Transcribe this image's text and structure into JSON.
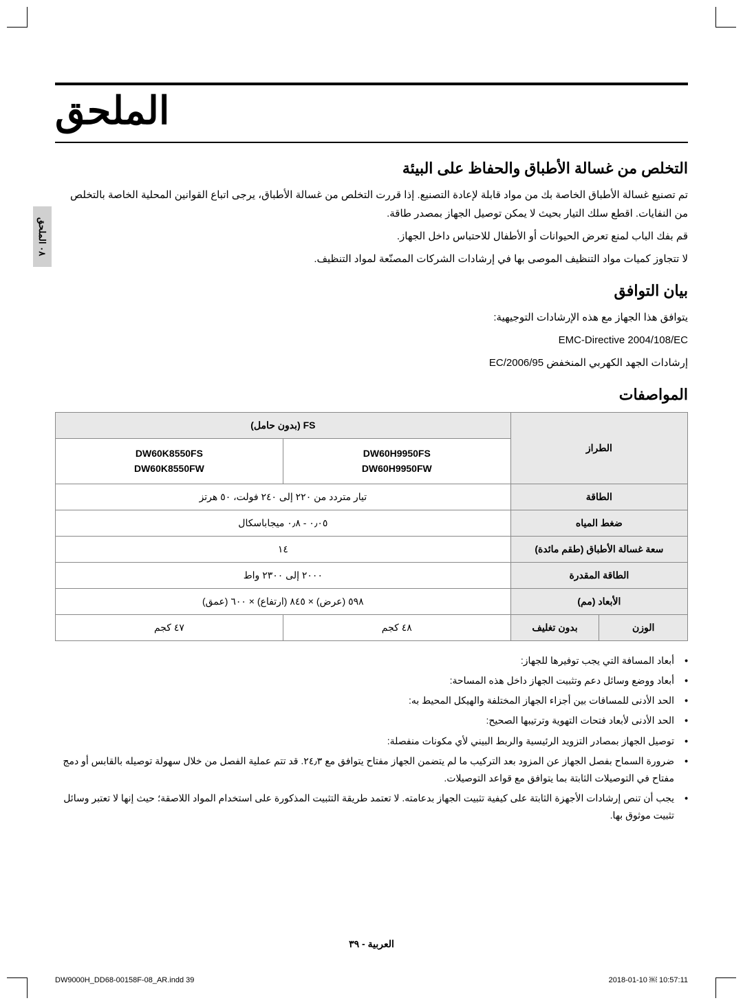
{
  "page": {
    "main_title": "الملحق",
    "tab_label": "٠٨ الملحق",
    "section1": {
      "heading": "التخلص من غسالة الأطباق والحفاظ على البيئة",
      "p1": "تم تصنيع غسالة الأطباق الخاصة بك من مواد قابلة لإعادة التصنيع. إذا قررت التخلص من غسالة الأطباق، يرجى اتباع القوانين المحلية الخاصة بالتخلص من النفايات. اقطع سلك التيار بحيث لا يمكن توصيل الجهاز بمصدر طاقة.",
      "p2": "قم بفك الباب لمنع تعرض الحيوانات أو الأطفال للاحتباس داخل الجهاز.",
      "p3": "لا تتجاوز كميات مواد التنظيف الموصى بها في إرشادات الشركات المصنّعة لمواد التنظيف."
    },
    "section2": {
      "heading": "بيان التوافق",
      "p1": "يتوافق هذا الجهاز مع هذه الإرشادات التوجيهية:",
      "p2": "EMC-Directive 2004/108/EC",
      "p3": "إرشادات الجهد الكهربي المنخفض 2006/95/EC"
    },
    "section3": {
      "heading": "المواصفات"
    },
    "table": {
      "head_model": "الطراز",
      "fs_label": "FS (بدون حامل)",
      "model_a_1": "DW60H9950FS",
      "model_a_2": "DW60H9950FW",
      "model_b_1": "DW60K8550FS",
      "model_b_2": "DW60K8550FW",
      "row_power": "الطاقة",
      "val_power": "تيار متردد من ٢٢٠ إلى ٢٤٠ فولت، ٥٠ هرتز",
      "row_water": "ضغط المياه",
      "val_water": "٠٫٠٥ - ٠٫٨ ميجاباسكال",
      "row_capacity": "سعة غسالة الأطباق (طقم مائدة)",
      "val_capacity": "١٤",
      "row_rated": "الطاقة المقدرة",
      "val_rated": "٢٠٠٠ إلى ٢٣٠٠ واط",
      "row_dims": "الأبعاد (مم)",
      "val_dims": "٥٩٨ (عرض) × ٨٤٥ (ارتفاع) × ٦٠٠ (عمق)",
      "row_weight": "الوزن",
      "sub_unpacked": "بدون تغليف",
      "val_weight_a": "٤٨ كجم",
      "val_weight_b": "٤٧ كجم"
    },
    "notes": {
      "n1": "أبعاد المسافة التي يجب توفيرها للجهاز:",
      "n2": "أبعاد ووضع وسائل دعم وتثبيت الجهاز داخل هذه المساحة:",
      "n3": "الحد الأدنى للمسافات بين أجزاء الجهاز المختلفة والهيكل المحيط به:",
      "n4": "الحد الأدنى لأبعاد فتحات التهوية وترتيبها الصحيح:",
      "n5": "توصيل الجهاز بمصادر التزويد الرئيسية والربط البيني لأي مكونات منفصلة:",
      "n6": "ضرورة السماح بفصل الجهاز عن المزود بعد التركيب ما لم يتضمن الجهاز مفتاح يتوافق مع ٢٤٫٣. قد تتم عملية الفصل من خلال سهولة توصيله بالقابس أو دمج مفتاح في التوصيلات الثابتة بما يتوافق مع قواعد التوصيلات.",
      "n7": "يجب أن تنص إرشادات الأجهزة الثابتة على كيفية تثبيت الجهاز بدعامته. لا تعتمد طريقة التثبيت المذكورة على استخدام المواد اللاصقة؛ حيث إنها لا تعتبر وسائل تثبيت موثوق بها."
    },
    "footer": "العربية - ٣٩",
    "print_left": "DW9000H_DD68-00158F-08_AR.indd   39",
    "print_right": "2018-01-10   ￼ 10:57:11"
  }
}
